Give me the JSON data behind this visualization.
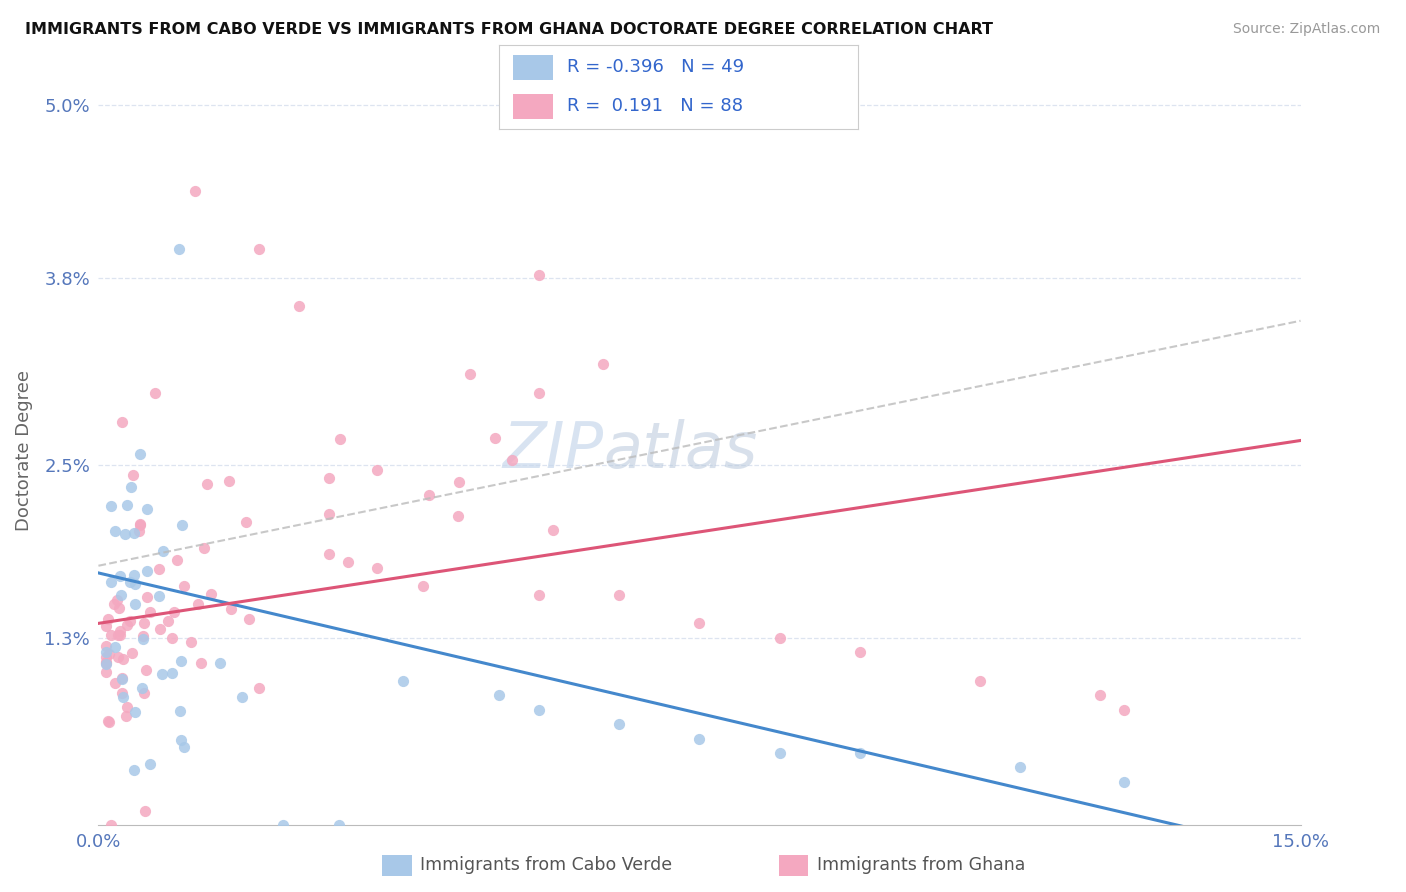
{
  "title": "IMMIGRANTS FROM CABO VERDE VS IMMIGRANTS FROM GHANA DOCTORATE DEGREE CORRELATION CHART",
  "source": "Source: ZipAtlas.com",
  "ylabel": "Doctorate Degree",
  "r_cabo": -0.396,
  "n_cabo": 49,
  "r_ghana": 0.191,
  "n_ghana": 88,
  "color_cabo": "#a8c8e8",
  "color_ghana": "#f4a8c0",
  "trendline_cabo": "#4488cc",
  "trendline_ghana": "#dd5577",
  "trendline_gray": "#bbbbbb",
  "background": "#ffffff",
  "grid_color": "#dde4f0",
  "xmin": 0.0,
  "xmax": 0.15,
  "ymin": 0.0,
  "ymax": 0.052,
  "ytick_vals": [
    0.0,
    0.013,
    0.025,
    0.038,
    0.05
  ],
  "ytick_labels": [
    "",
    "1.3%",
    "2.5%",
    "3.8%",
    "5.0%"
  ],
  "xtick_vals": [
    0.0,
    0.15
  ],
  "xtick_labels": [
    "0.0%",
    "15.0%"
  ],
  "tick_color": "#5577bb",
  "legend_label1": "Immigrants from Cabo Verde",
  "legend_label2": "Immigrants from Ghana",
  "watermark_zip": "ZIP",
  "watermark_atlas": "atlas"
}
